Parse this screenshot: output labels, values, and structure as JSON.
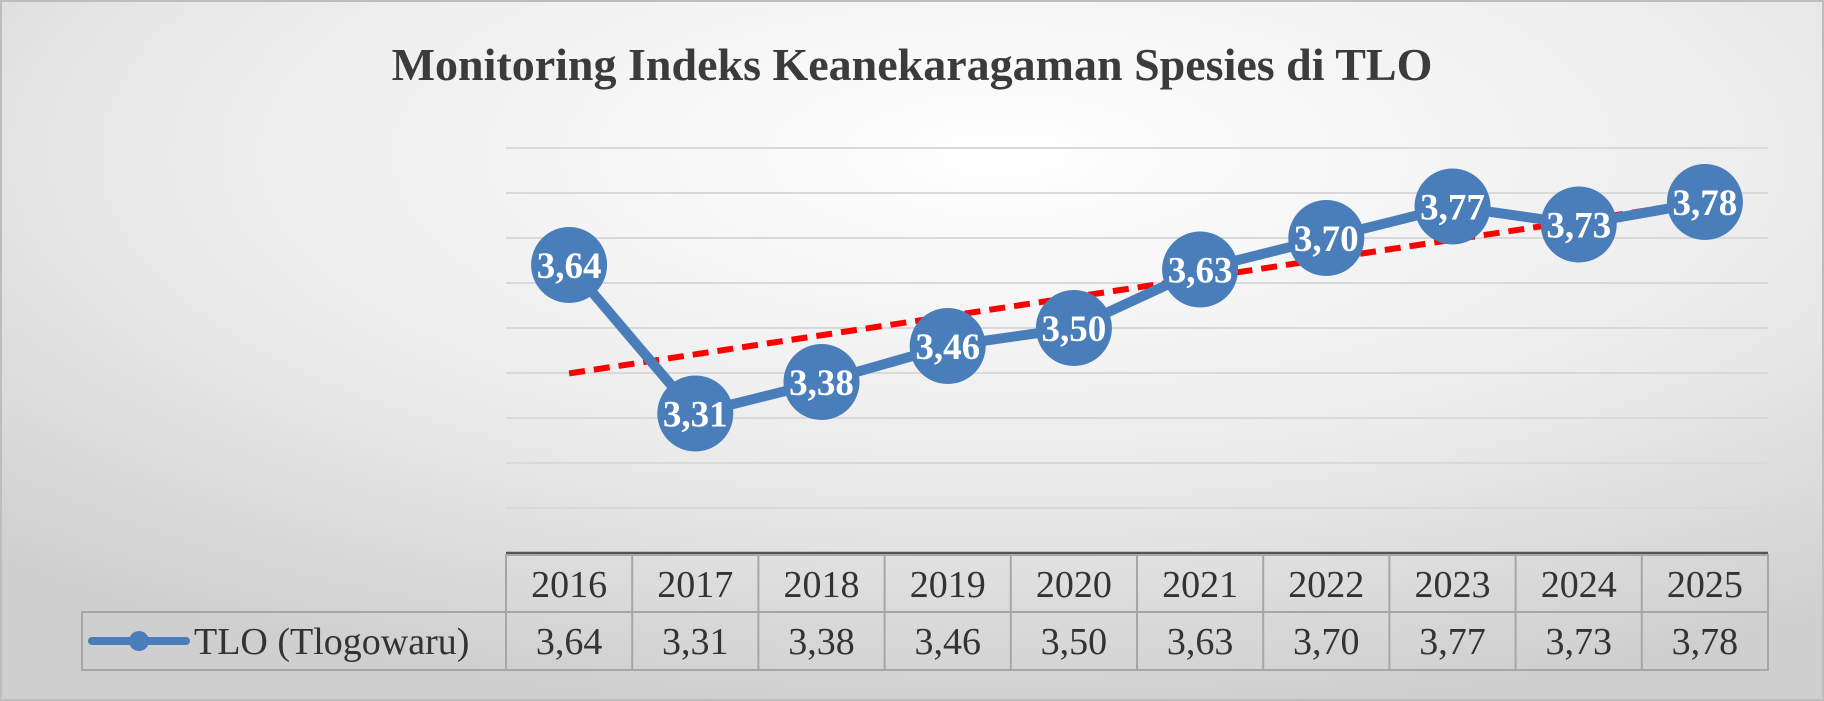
{
  "chart_data": {
    "type": "line",
    "title": "Monitoring Indeks Keanekaragaman Spesies di TLO",
    "categories": [
      "2016",
      "2017",
      "2018",
      "2019",
      "2020",
      "2021",
      "2022",
      "2023",
      "2024",
      "2025"
    ],
    "series": [
      {
        "name": "TLO (Tlogowaru)",
        "values": [
          3.64,
          3.31,
          3.38,
          3.46,
          3.5,
          3.63,
          3.7,
          3.77,
          3.73,
          3.78
        ],
        "labels": [
          "3,64",
          "3,31",
          "3,38",
          "3,46",
          "3,50",
          "3,63",
          "3,70",
          "3,77",
          "3,73",
          "3,78"
        ],
        "color": "#4a7ebb",
        "marker": "circle",
        "data_labels": "center"
      }
    ],
    "trendline": {
      "type": "linear",
      "color": "#ff0000",
      "style": "dashed"
    },
    "ylim": [
      3.0,
      3.9
    ],
    "grid": true,
    "legend": "data-table",
    "data_table": true,
    "xlabel": "",
    "ylabel": ""
  },
  "colors": {
    "line": "#4a7ebb",
    "trend": "#ff0000",
    "grid": "#d9d9d9",
    "text": "#333333",
    "title": "#3b3b3b"
  }
}
